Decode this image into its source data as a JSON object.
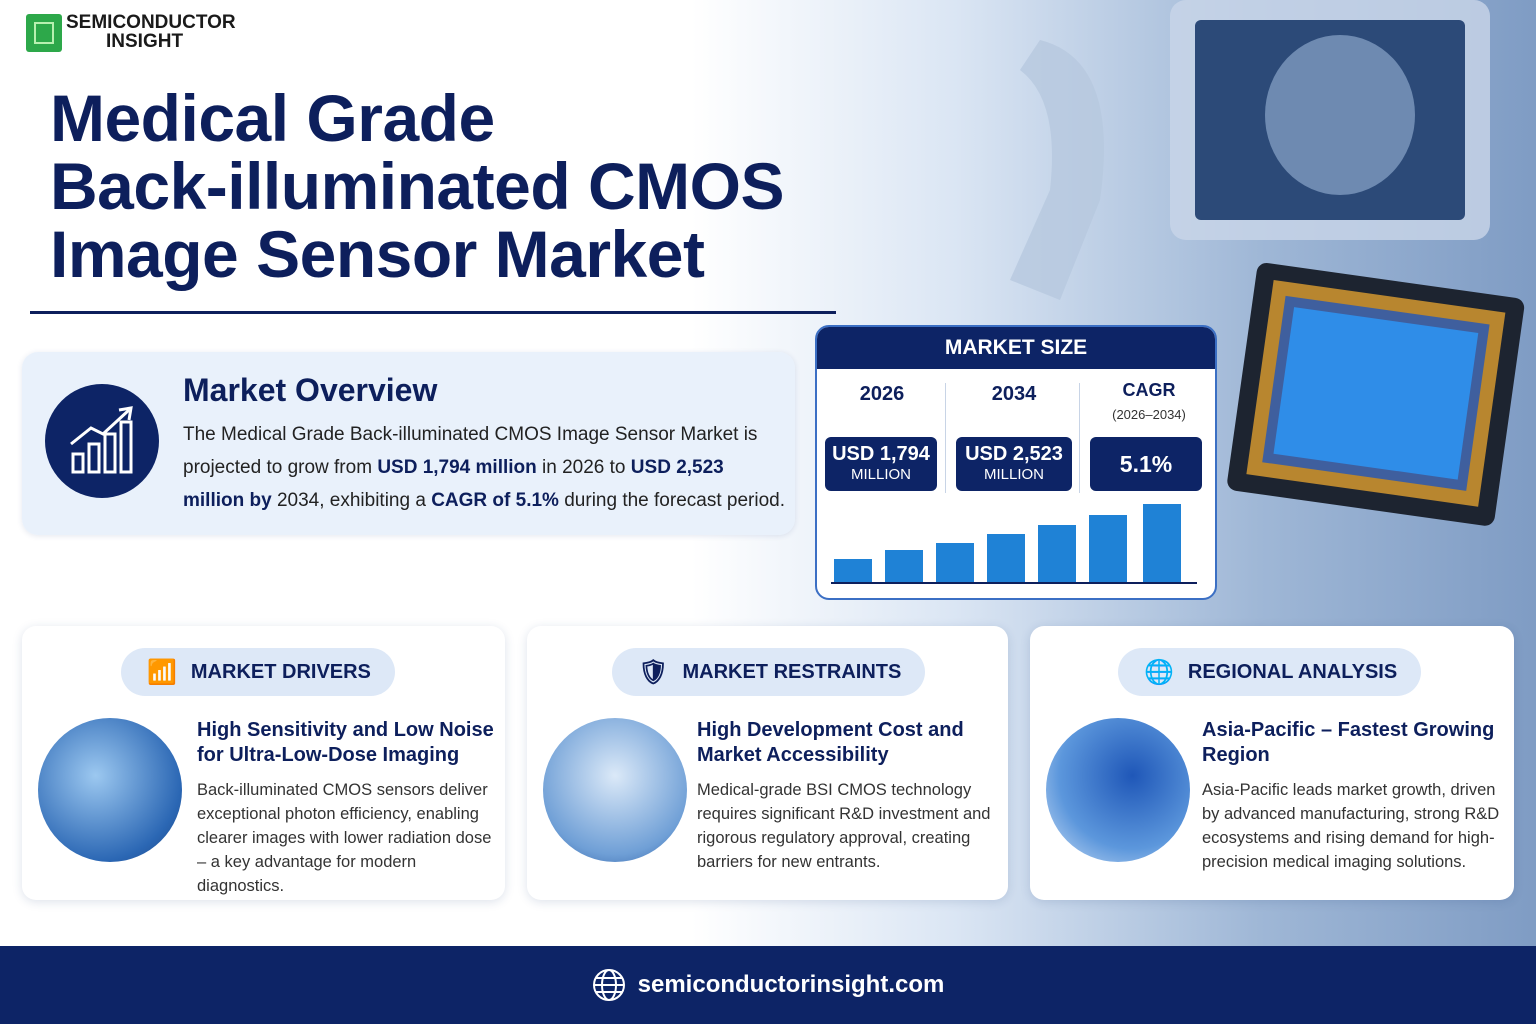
{
  "logo": {
    "line1": "SEMICONDUCTOR",
    "line2": "INSIGHT"
  },
  "header": {
    "title_lines": [
      "Medical Grade",
      "Back-illuminated CMOS",
      "Image Sensor Market"
    ]
  },
  "overview": {
    "heading": "Market Overview",
    "segments": [
      {
        "text": "The Medical Grade Back-illuminated CMOS Image Sensor Market is projected to grow from ",
        "bold": false
      },
      {
        "text": "USD 1,794 million",
        "bold": true
      },
      {
        "text": " in 2026 to ",
        "bold": false
      },
      {
        "text": "USD 2,523 million by",
        "bold": true
      },
      {
        "text": " 2034, exhibiting a ",
        "bold": false
      },
      {
        "text": "CAGR of 5.1%",
        "bold": true
      },
      {
        "text": " during the forecast period.",
        "bold": false
      }
    ]
  },
  "market_size": {
    "heading": "MARKET SIZE",
    "col1": {
      "year": "2026",
      "value": "USD 1,794",
      "unit": "MILLION"
    },
    "col2": {
      "year": "2034",
      "value": "USD 2,523",
      "unit": "MILLION"
    },
    "col3": {
      "label": "CAGR",
      "period": "(2026–2034)",
      "value": "5.1%"
    }
  },
  "cards": [
    {
      "heading": "MARKET DRIVERS",
      "title": "High Sensitivity and Low Noise for Ultra-Low-Dose Imaging",
      "body": "Back-illuminated CMOS sensors deliver exceptional photon efficiency, enabling clearer images with lower radiation dose – a key advantage for modern diagnostics."
    },
    {
      "heading": "MARKET RESTRAINTS",
      "title": "High Development Cost and Market Accessibility",
      "body": "Medical-grade BSI CMOS technology requires significant R&D investment and rigorous regulatory approval, creating barriers for new entrants."
    },
    {
      "heading": "REGIONAL ANALYSIS",
      "title": "Asia-Pacific – Fastest Growing Region",
      "body": "Asia-Pacific leads market growth, driven by advanced manufacturing, strong R&D ecosystems and rising demand for high-precision medical imaging solutions."
    }
  ],
  "footer": {
    "url": "semiconductorinsight.com"
  }
}
